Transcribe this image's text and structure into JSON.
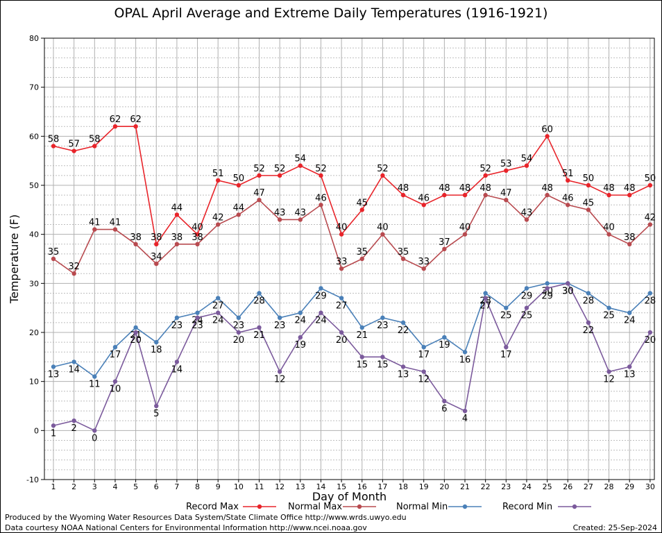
{
  "chart_data": {
    "type": "line",
    "title": "OPAL April Average and Extreme Daily Temperatures (1916-1921)",
    "xlabel": "Day of Month",
    "ylabel": "Temperature (F)",
    "ylim": [
      -10,
      80
    ],
    "xlim": [
      1,
      30
    ],
    "grid": true,
    "legend_position": "bottom",
    "x": [
      1,
      2,
      3,
      4,
      5,
      6,
      7,
      8,
      9,
      10,
      11,
      12,
      13,
      14,
      15,
      16,
      17,
      18,
      19,
      20,
      21,
      22,
      23,
      24,
      25,
      26,
      27,
      28,
      29,
      30
    ],
    "yticks": [
      -10,
      0,
      10,
      20,
      30,
      40,
      50,
      60,
      70,
      80
    ],
    "series": [
      {
        "name": "Record Max",
        "color": "#e8242a",
        "label_pos": "above",
        "values": [
          58,
          57,
          58,
          62,
          62,
          38,
          44,
          40,
          51,
          50,
          52,
          52,
          54,
          52,
          40,
          45,
          52,
          48,
          46,
          48,
          48,
          52,
          53,
          54,
          60,
          51,
          50,
          48,
          48,
          50
        ]
      },
      {
        "name": "Normal Max",
        "color": "#b84a4f",
        "label_pos": "above",
        "values": [
          35,
          32,
          41,
          41,
          38,
          34,
          38,
          38,
          42,
          44,
          47,
          43,
          43,
          46,
          33,
          35,
          40,
          35,
          33,
          37,
          40,
          48,
          47,
          43,
          48,
          46,
          45,
          40,
          38,
          42
        ]
      },
      {
        "name": "Normal Min",
        "color": "#4a80b8",
        "label_pos": "below",
        "values": [
          13,
          14,
          11,
          17,
          21,
          18,
          23,
          24,
          27,
          23,
          28,
          23,
          24,
          29,
          27,
          21,
          23,
          22,
          17,
          19,
          16,
          28,
          25,
          29,
          30,
          30,
          28,
          25,
          24,
          28
        ]
      },
      {
        "name": "Record Min",
        "color": "#7b5a9c",
        "label_pos": "below",
        "values": [
          1,
          2,
          0,
          10,
          20,
          5,
          14,
          23,
          24,
          20,
          21,
          12,
          19,
          24,
          20,
          15,
          15,
          13,
          12,
          6,
          4,
          27,
          17,
          25,
          29,
          30,
          22,
          12,
          13,
          20
        ]
      }
    ]
  },
  "footer": {
    "line1": "Produced by the Wyoming Water Resources Data System/State Climate Office http://www.wrds.uwyo.edu",
    "line2": "Data courtesy NOAA National Centers for Environmental Information http://www.ncei.noaa.gov",
    "created": "Created:  25-Sep-2024"
  }
}
